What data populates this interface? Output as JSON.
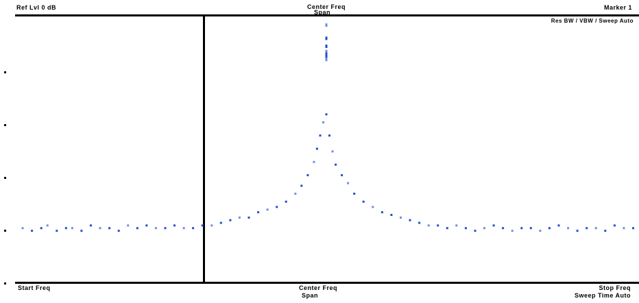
{
  "header": {
    "left": "Ref Lvl 0 dB",
    "center_line1": "Center Freq",
    "center_line2": "Span",
    "right": "Marker 1",
    "right_sub": "Res BW / VBW / Sweep Auto"
  },
  "footer": {
    "left": "Start Freq",
    "center_line1": "Center Freq",
    "center_line2": "Span",
    "right_line1": "Stop Freq",
    "right_line2": "Sweep Time Auto"
  },
  "colors": {
    "trace": "#1f4fc8",
    "trace_light": "#6b8ee0",
    "axes": "#000000",
    "background": "#ffffff"
  },
  "chart_data": {
    "type": "scatter",
    "title": "",
    "xlabel": "",
    "ylabel": "",
    "xlim": [
      -1,
      1
    ],
    "ylim": [
      0,
      100
    ],
    "grid": false,
    "marker_x": -0.4,
    "series": [
      {
        "values_x": [
          -0.98,
          -0.95,
          -0.92,
          -0.9,
          -0.87,
          -0.84,
          -0.82,
          -0.79,
          -0.76,
          -0.73,
          -0.7,
          -0.67,
          -0.64,
          -0.61,
          -0.58,
          -0.55,
          -0.52,
          -0.49,
          -0.46,
          -0.43,
          -0.4,
          -0.37,
          -0.34,
          -0.31,
          -0.28,
          -0.25,
          -0.22,
          -0.19,
          -0.16,
          -0.13,
          -0.1,
          -0.08,
          -0.06,
          -0.04,
          -0.03,
          -0.02,
          -0.01,
          0.0,
          0.01,
          0.02,
          0.03,
          0.05,
          0.07,
          0.09,
          0.12,
          0.15,
          0.18,
          0.21,
          0.24,
          0.27,
          0.3,
          0.33,
          0.36,
          0.39,
          0.42,
          0.45,
          0.48,
          0.51,
          0.54,
          0.57,
          0.6,
          0.63,
          0.66,
          0.69,
          0.72,
          0.75,
          0.78,
          0.81,
          0.84,
          0.87,
          0.9,
          0.93,
          0.96,
          0.99
        ],
        "values_y": [
          20,
          19,
          20,
          21,
          19,
          20,
          20,
          19,
          21,
          20,
          20,
          19,
          21,
          20,
          21,
          20,
          20,
          21,
          20,
          20,
          21,
          21,
          22,
          23,
          24,
          24,
          26,
          27,
          28,
          30,
          33,
          36,
          40,
          45,
          50,
          55,
          60,
          63,
          55,
          49,
          44,
          40,
          37,
          33,
          30,
          28,
          26,
          25,
          24,
          23,
          22,
          21,
          21,
          20,
          21,
          20,
          19,
          20,
          21,
          20,
          19,
          20,
          20,
          19,
          20,
          21,
          20,
          19,
          20,
          20,
          19,
          21,
          20,
          20
        ]
      },
      {
        "values_x": [
          0.0,
          0.0,
          0.0,
          0.0,
          0.0,
          0.0,
          0.0
        ],
        "values_y": [
          97,
          92,
          89,
          87,
          86,
          85,
          84
        ]
      }
    ]
  }
}
